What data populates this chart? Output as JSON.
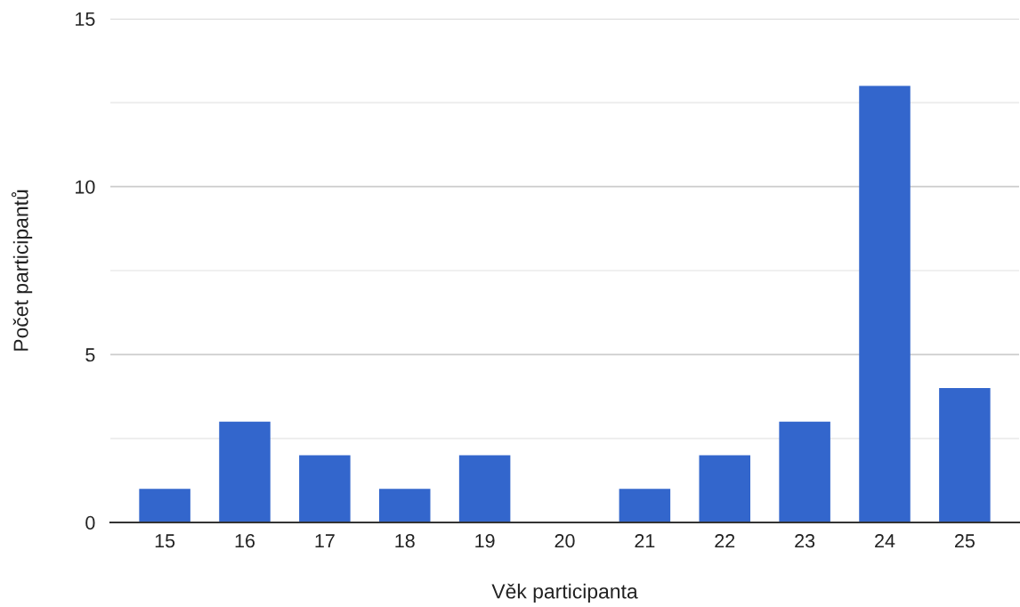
{
  "chart_data": {
    "type": "bar",
    "xlabel": "Věk participanta",
    "ylabel": "Počet participantů",
    "categories": [
      "15",
      "16",
      "17",
      "18",
      "19",
      "20",
      "21",
      "22",
      "23",
      "24",
      "25"
    ],
    "values": [
      1,
      3,
      2,
      1,
      2,
      0,
      1,
      2,
      3,
      13,
      4
    ],
    "color": "#3366cc",
    "ylim": [
      0,
      15
    ],
    "yticks": [
      0,
      {
        "value": 2.5,
        "label": null
      },
      5,
      {
        "value": 7.5,
        "label": null
      },
      10,
      {
        "value": 12.5,
        "label": null
      },
      15
    ],
    "grid": "y"
  }
}
